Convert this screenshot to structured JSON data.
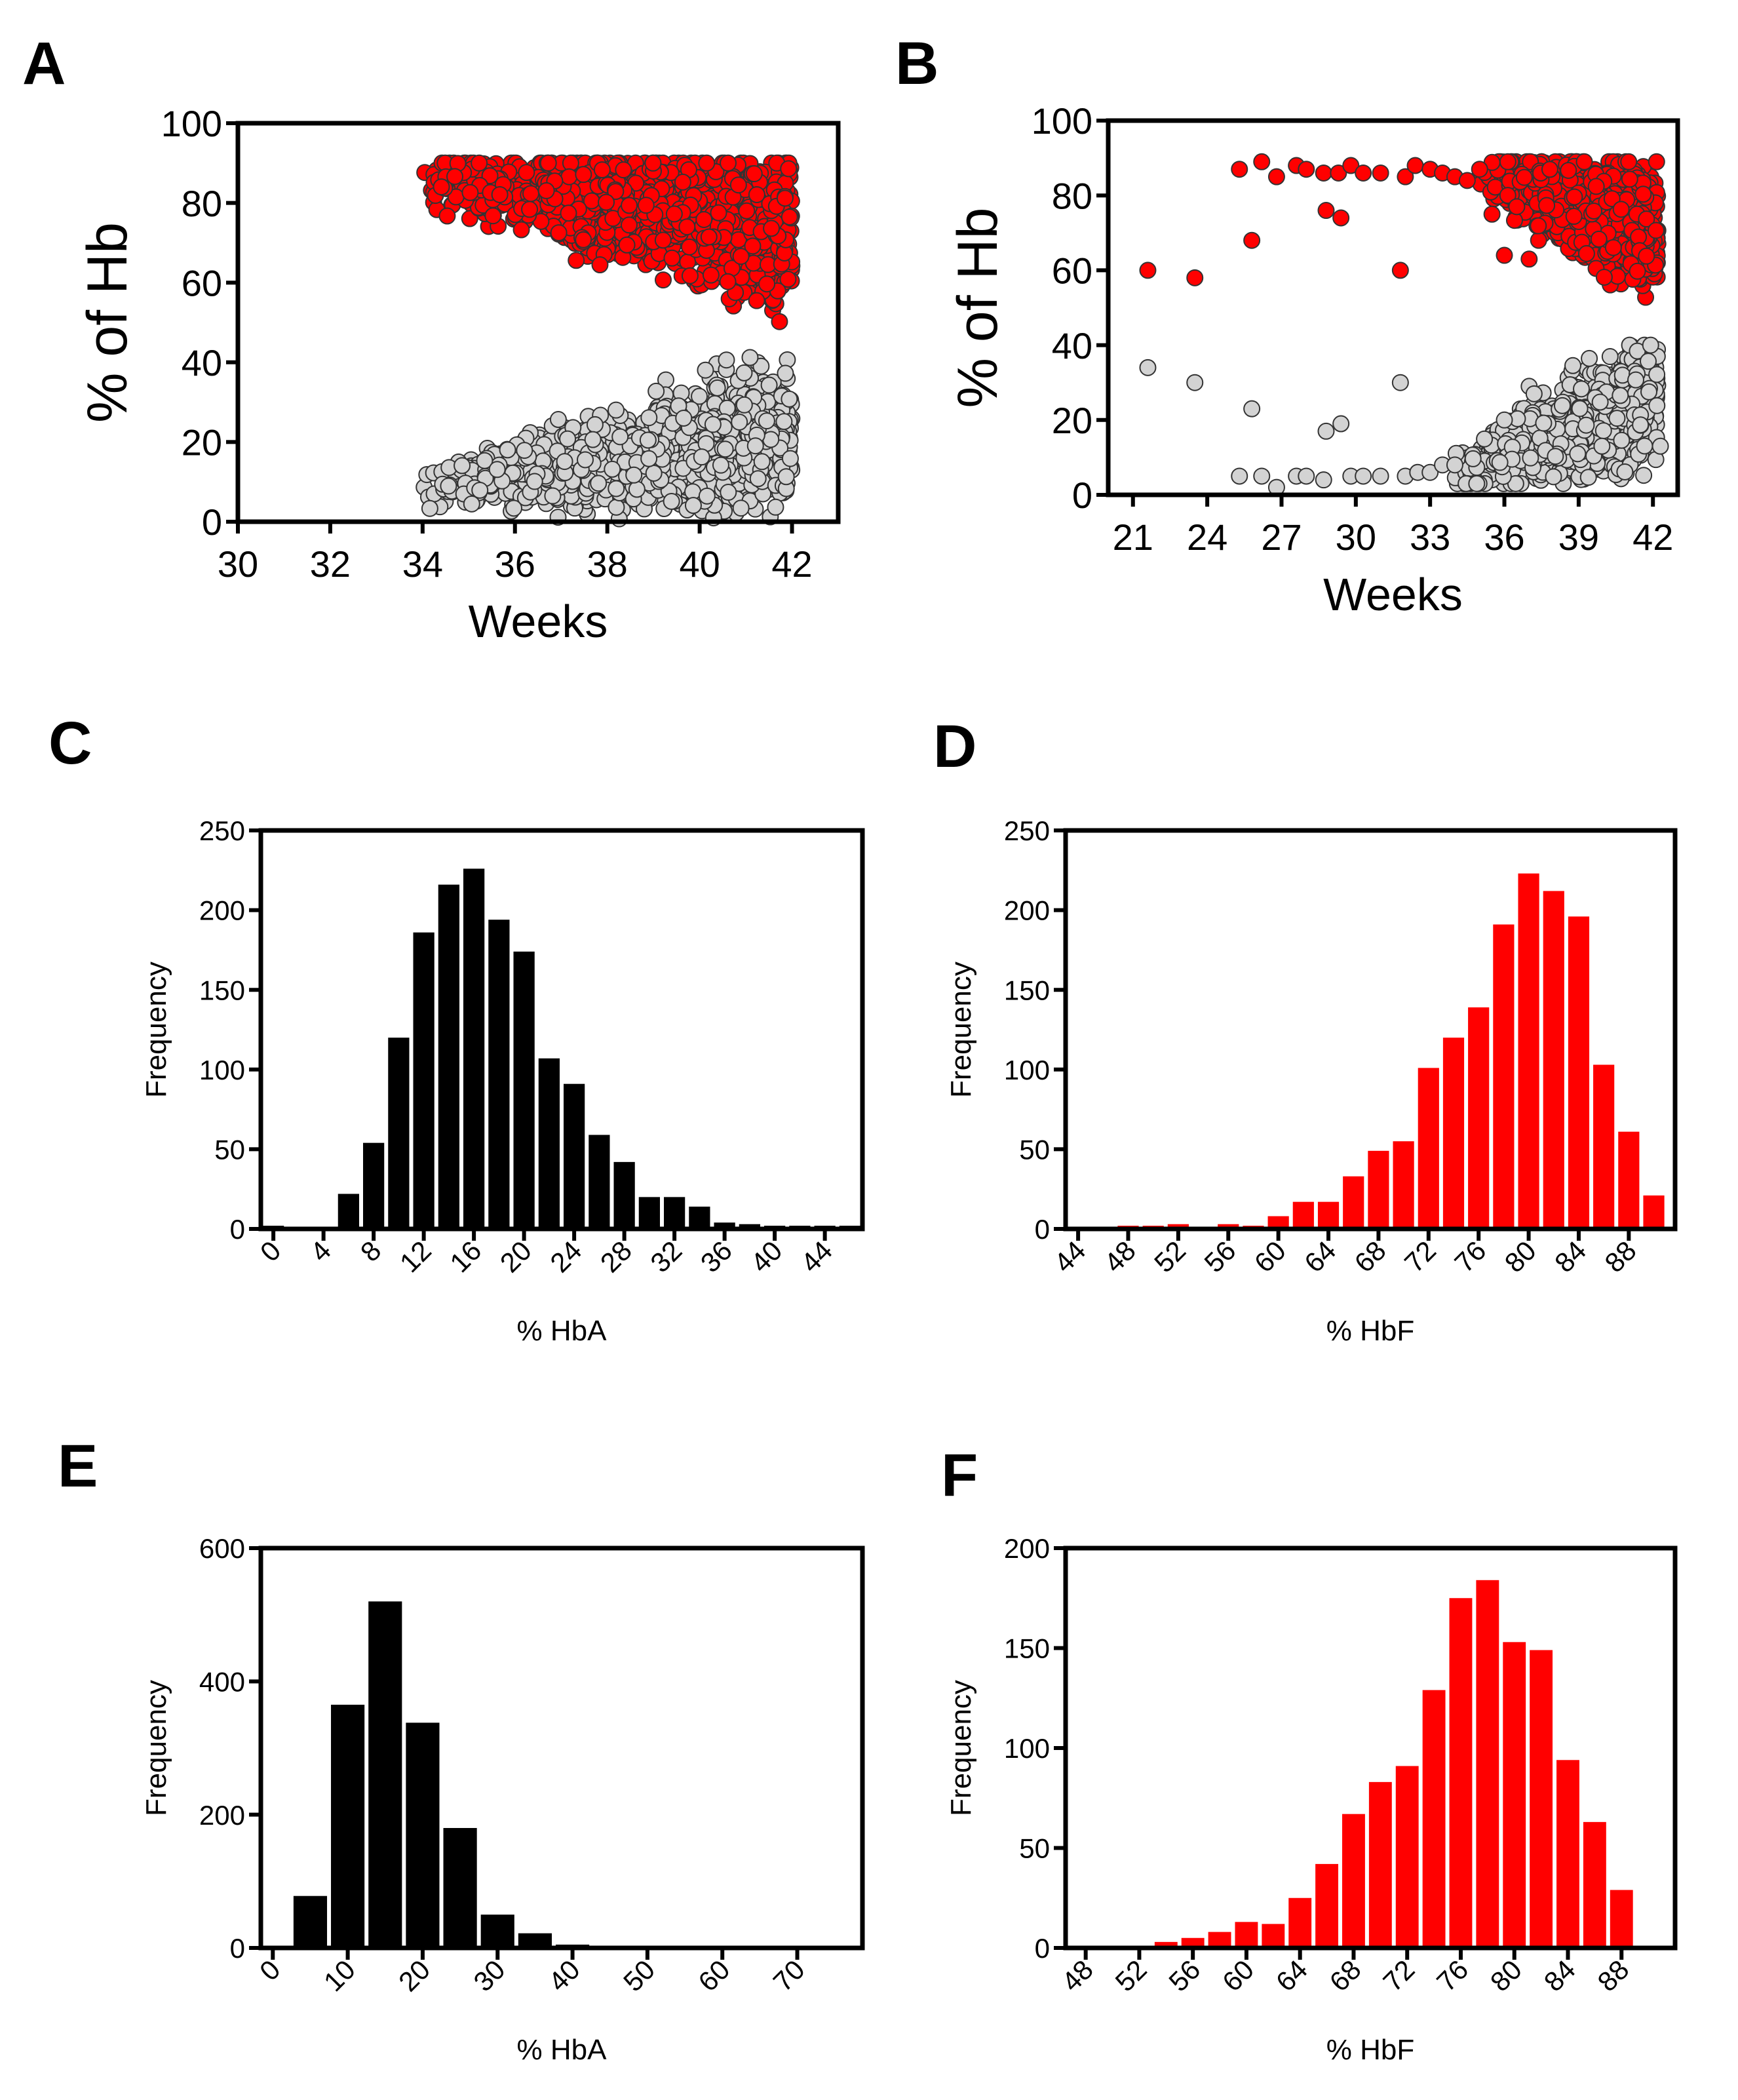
{
  "colors": {
    "hbf": "#ff0000",
    "hba": "#d3d3d3",
    "black": "#000000"
  },
  "chart_data": [
    {
      "panel": "A",
      "type": "scatter",
      "xlabel": "Weeks",
      "ylabel": "% of Hb",
      "xlim": [
        30,
        43
      ],
      "ylim": [
        0,
        100
      ],
      "xticks": [
        "30",
        "32",
        "34",
        "36",
        "38",
        "40",
        "42"
      ],
      "yticks": [
        "0",
        "20",
        "40",
        "60",
        "80",
        "100"
      ],
      "series": [
        {
          "name": "HbF",
          "color": "#ff0000",
          "cloud": {
            "x_range": [
              34,
              42
            ],
            "n": 1300,
            "y_start": 86,
            "y_slope": -1.6,
            "spread": 9,
            "min": 47,
            "max": 90
          }
        },
        {
          "name": "HbA",
          "color": "#d3d3d3",
          "cloud": {
            "x_range": [
              34,
              42
            ],
            "n": 1300,
            "y_start": 9,
            "y_slope": 1.6,
            "spread": 8,
            "min": 0,
            "max": 45
          }
        }
      ]
    },
    {
      "panel": "B",
      "type": "scatter",
      "xlabel": "Weeks",
      "ylabel": "% of Hb",
      "xlim": [
        20,
        43
      ],
      "ylim": [
        0,
        100
      ],
      "xticks": [
        "21",
        "24",
        "27",
        "30",
        "33",
        "36",
        "39",
        "42"
      ],
      "yticks": [
        "0",
        "20",
        "40",
        "60",
        "80",
        "100"
      ],
      "series": [
        {
          "name": "HbF",
          "color": "#ff0000",
          "points": [
            [
              21.6,
              60
            ],
            [
              23.5,
              58
            ],
            [
              25.3,
              87
            ],
            [
              25.8,
              68
            ],
            [
              26.2,
              89
            ],
            [
              26.8,
              85
            ],
            [
              27.6,
              88
            ],
            [
              28,
              87
            ],
            [
              28.7,
              86
            ],
            [
              28.8,
              76
            ],
            [
              29.3,
              86
            ],
            [
              29.4,
              74
            ],
            [
              29.8,
              88
            ],
            [
              30.3,
              86
            ],
            [
              31,
              86
            ],
            [
              31.8,
              60
            ],
            [
              32,
              85
            ],
            [
              32.4,
              88
            ],
            [
              33,
              87
            ],
            [
              33.5,
              86
            ],
            [
              34,
              85
            ],
            [
              34.5,
              84
            ],
            [
              35,
              87
            ],
            [
              35.5,
              75
            ],
            [
              36,
              64
            ],
            [
              36.5,
              77
            ],
            [
              37,
              63
            ]
          ],
          "cloud": {
            "x_range": [
              35,
              42.2
            ],
            "n": 1100,
            "y_start": 86,
            "y_slope": -2.2,
            "spread": 8,
            "min": 49,
            "max": 89
          }
        },
        {
          "name": "HbA",
          "color": "#d3d3d3",
          "points": [
            [
              21.6,
              34
            ],
            [
              23.5,
              30
            ],
            [
              25.3,
              5
            ],
            [
              25.8,
              23
            ],
            [
              26.2,
              5
            ],
            [
              26.8,
              2
            ],
            [
              27.6,
              5
            ],
            [
              28,
              5
            ],
            [
              28.7,
              4
            ],
            [
              28.8,
              17
            ],
            [
              29.4,
              19
            ],
            [
              29.8,
              5
            ],
            [
              30.3,
              5
            ],
            [
              31,
              5
            ],
            [
              31.8,
              30
            ],
            [
              32,
              5
            ],
            [
              32.5,
              6
            ],
            [
              33,
              6
            ],
            [
              33.5,
              8
            ],
            [
              34,
              8
            ],
            [
              36,
              20
            ],
            [
              37,
              29
            ],
            [
              37.2,
              27
            ],
            [
              42.3,
              13
            ]
          ],
          "cloud": {
            "x_range": [
              34,
              42.2
            ],
            "n": 1100,
            "y_start": 6,
            "y_slope": 2.4,
            "spread": 8,
            "min": 3,
            "max": 40
          }
        }
      ]
    },
    {
      "panel": "C",
      "type": "bar",
      "xlabel": "% HbA",
      "ylabel": "Frequency",
      "color": "#000000",
      "xlim": [
        -1,
        47
      ],
      "ylim": [
        0,
        250
      ],
      "bin_width": 2,
      "xticks": [
        "0",
        "4",
        "8",
        "12",
        "16",
        "20",
        "24",
        "28",
        "32",
        "36",
        "40",
        "44"
      ],
      "yticks": [
        "0",
        "50",
        "100",
        "150",
        "200",
        "250"
      ],
      "bins": [
        0,
        2,
        4,
        6,
        8,
        10,
        12,
        14,
        16,
        18,
        20,
        22,
        24,
        26,
        28,
        30,
        32,
        34,
        36,
        38,
        40,
        42,
        44,
        46
      ],
      "values": [
        2,
        0,
        1,
        22,
        54,
        120,
        186,
        216,
        226,
        194,
        174,
        107,
        91,
        59,
        42,
        20,
        20,
        14,
        4,
        3,
        2,
        2,
        2,
        2
      ]
    },
    {
      "panel": "D",
      "type": "bar",
      "xlabel": "% HbF",
      "ylabel": "Frequency",
      "color": "#ff0000",
      "xlim": [
        43,
        91.7
      ],
      "ylim": [
        0,
        250
      ],
      "bin_width": 2,
      "xticks": [
        "44",
        "48",
        "52",
        "56",
        "60",
        "64",
        "68",
        "72",
        "76",
        "80",
        "84",
        "88"
      ],
      "yticks": [
        "0",
        "50",
        "100",
        "150",
        "200",
        "250"
      ],
      "bins": [
        44,
        46,
        48,
        50,
        52,
        54,
        56,
        58,
        60,
        62,
        64,
        66,
        68,
        70,
        72,
        74,
        76,
        78,
        80,
        82,
        84,
        86,
        88,
        90
      ],
      "values": [
        0,
        1,
        2,
        2,
        3,
        0,
        3,
        2,
        8,
        17,
        17,
        33,
        49,
        55,
        101,
        120,
        139,
        191,
        223,
        212,
        196,
        103,
        61,
        21
      ]
    },
    {
      "panel": "E",
      "type": "bar",
      "xlabel": "% HbA",
      "ylabel": "Frequency",
      "color": "#000000",
      "xlim": [
        -1.6,
        78.7
      ],
      "ylim": [
        0,
        600
      ],
      "bin_width": 5,
      "xticks": [
        "0",
        "10",
        "20",
        "30",
        "40",
        "50",
        "60",
        "70"
      ],
      "yticks": [
        "0",
        "200",
        "400",
        "600"
      ],
      "bins": [
        0,
        5,
        10,
        15,
        20,
        25,
        30,
        35,
        40,
        45,
        50,
        55,
        60,
        65,
        70,
        75
      ],
      "values": [
        2,
        78,
        365,
        520,
        338,
        180,
        50,
        22,
        5,
        0,
        0,
        0,
        0,
        0,
        0,
        2
      ]
    },
    {
      "panel": "F",
      "type": "bar",
      "xlabel": "% HbF",
      "ylabel": "Frequency",
      "color": "#ff0000",
      "xlim": [
        46.5,
        92
      ],
      "ylim": [
        0,
        200
      ],
      "bin_width": 2,
      "xticks": [
        "48",
        "52",
        "56",
        "60",
        "64",
        "68",
        "72",
        "76",
        "80",
        "84",
        "88"
      ],
      "yticks": [
        "0",
        "50",
        "100",
        "150",
        "200"
      ],
      "bins": [
        48,
        50,
        52,
        54,
        56,
        58,
        60,
        62,
        64,
        66,
        68,
        70,
        72,
        74,
        76,
        78,
        80,
        82,
        84,
        86,
        88,
        90
      ],
      "values": [
        0,
        1,
        1,
        3,
        5,
        8,
        13,
        12,
        25,
        42,
        67,
        83,
        91,
        129,
        175,
        184,
        153,
        149,
        94,
        63,
        29,
        1
      ]
    }
  ]
}
